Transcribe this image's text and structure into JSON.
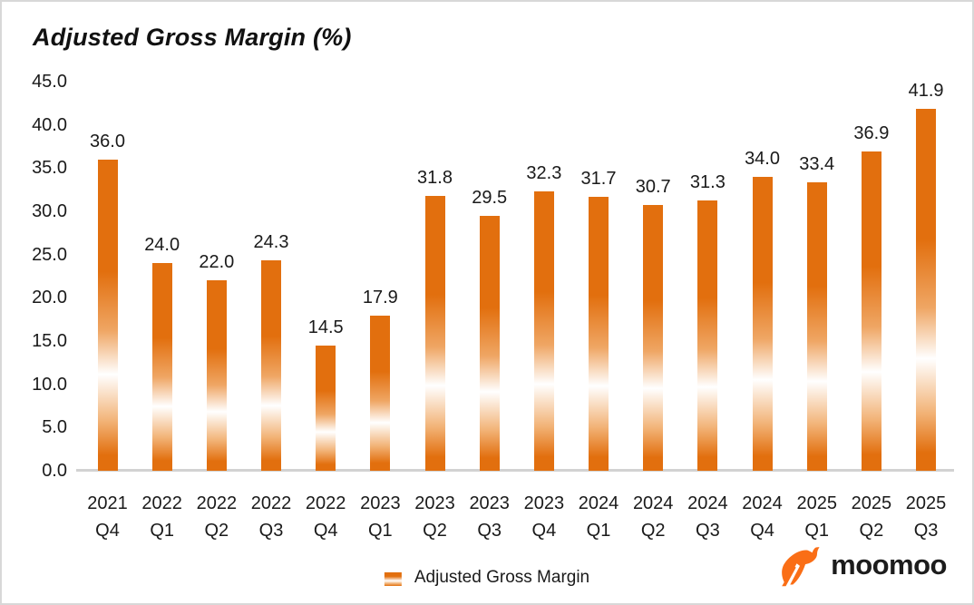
{
  "title": "Adjusted Gross Margin (%)",
  "legend": {
    "label": "Adjusted Gross Margin"
  },
  "logo": {
    "text": "moomoo",
    "icon": "moomoo-bull-icon"
  },
  "colors": {
    "bar_orange": "#e26f0e",
    "logo_orange": "#fa6e16",
    "text": "#1a1a1a",
    "baseline": "#d2d2d2",
    "page_border": "#d8d8d8"
  },
  "chart_data": {
    "type": "bar",
    "title": "Adjusted Gross Margin (%)",
    "categories": [
      {
        "year": "2021",
        "quarter": "Q4"
      },
      {
        "year": "2022",
        "quarter": "Q1"
      },
      {
        "year": "2022",
        "quarter": "Q2"
      },
      {
        "year": "2022",
        "quarter": "Q3"
      },
      {
        "year": "2022",
        "quarter": "Q4"
      },
      {
        "year": "2023",
        "quarter": "Q1"
      },
      {
        "year": "2023",
        "quarter": "Q2"
      },
      {
        "year": "2023",
        "quarter": "Q3"
      },
      {
        "year": "2023",
        "quarter": "Q4"
      },
      {
        "year": "2024",
        "quarter": "Q1"
      },
      {
        "year": "2024",
        "quarter": "Q2"
      },
      {
        "year": "2024",
        "quarter": "Q3"
      },
      {
        "year": "2024",
        "quarter": "Q4"
      },
      {
        "year": "2025",
        "quarter": "Q1"
      },
      {
        "year": "2025",
        "quarter": "Q2"
      },
      {
        "year": "2025",
        "quarter": "Q3"
      }
    ],
    "values": [
      36.0,
      24.0,
      22.0,
      24.3,
      14.5,
      17.9,
      31.8,
      29.5,
      32.3,
      31.7,
      30.7,
      31.3,
      34.0,
      33.4,
      36.9,
      41.9
    ],
    "value_labels": [
      "36.0",
      "24.0",
      "22.0",
      "24.3",
      "14.5",
      "17.9",
      "31.8",
      "29.5",
      "32.3",
      "31.7",
      "30.7",
      "31.3",
      "34.0",
      "33.4",
      "36.9",
      "41.9"
    ],
    "ylim": [
      0,
      45
    ],
    "ytick_step": 5,
    "ytick_labels": [
      "45.0",
      "40.0",
      "35.0",
      "30.0",
      "25.0",
      "20.0",
      "15.0",
      "10.0",
      "5.0",
      "0.0"
    ],
    "xlabel": "",
    "ylabel": "",
    "grid": false,
    "legend_entries": [
      "Adjusted Gross Margin"
    ],
    "legend_position": "bottom-center",
    "bar_gradient": "orange-white-orange vertical gloss"
  }
}
